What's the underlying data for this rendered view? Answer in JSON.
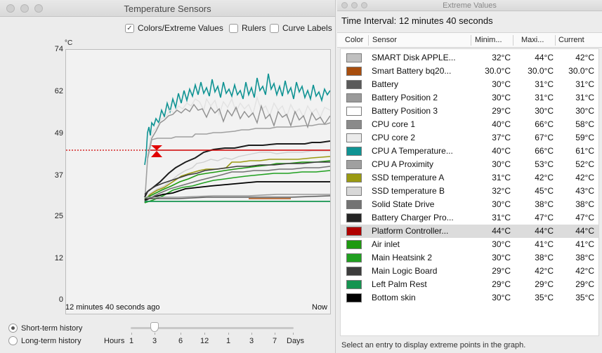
{
  "left_window": {
    "title": "Temperature Sensors",
    "checkboxes": [
      {
        "label": "Colors/Extreme Values",
        "checked": true
      },
      {
        "label": "Rulers",
        "checked": false
      },
      {
        "label": "Curve Labels",
        "checked": false
      }
    ],
    "unit": "°C",
    "y_ticks": [
      "74",
      "62",
      "49",
      "37",
      "25",
      "12",
      "0"
    ],
    "time_start": "12 minutes 40 seconds ago",
    "time_end": "Now",
    "history": {
      "short_label": "Short-term history",
      "long_label": "Long-term history",
      "selected": "short"
    },
    "slider": {
      "label": "Hours",
      "value": "3",
      "ticks": [
        "1",
        "3",
        "6",
        "12",
        "1",
        "3",
        "7",
        "Days"
      ]
    }
  },
  "right_window": {
    "title": "Extreme Values",
    "interval": "Time Interval: 12 minutes 40 seconds",
    "columns": [
      "Color",
      "Sensor",
      "Minim...",
      "Maxi...",
      "Current"
    ],
    "rows": [
      {
        "color": "#c0c0c0",
        "name": "SMART Disk APPLE...",
        "min": "32°C",
        "max": "44°C",
        "cur": "42°C"
      },
      {
        "color": "#a84e0e",
        "name": "Smart Battery bq20...",
        "min": "30.0°C",
        "max": "30.0°C",
        "cur": "30.0°C"
      },
      {
        "color": "#5a5a5a",
        "name": "Battery",
        "min": "30°C",
        "max": "31°C",
        "cur": "31°C"
      },
      {
        "color": "#9a9a9a",
        "name": "Battery Position 2",
        "min": "30°C",
        "max": "31°C",
        "cur": "31°C"
      },
      {
        "color": "#ffffff",
        "name": "Battery Position 3",
        "min": "29°C",
        "max": "30°C",
        "cur": "30°C"
      },
      {
        "color": "#8a8a8a",
        "name": "CPU core 1",
        "min": "40°C",
        "max": "66°C",
        "cur": "58°C"
      },
      {
        "color": "#ebebeb",
        "name": "CPU core 2",
        "min": "37°C",
        "max": "67°C",
        "cur": "59°C"
      },
      {
        "color": "#0f9393",
        "name": "CPU A Temperature...",
        "min": "40°C",
        "max": "66°C",
        "cur": "61°C"
      },
      {
        "color": "#a0a0a0",
        "name": "CPU A Proximity",
        "min": "30°C",
        "max": "53°C",
        "cur": "52°C"
      },
      {
        "color": "#9a9a12",
        "name": "SSD temperature A",
        "min": "31°C",
        "max": "42°C",
        "cur": "42°C"
      },
      {
        "color": "#d8d8d8",
        "name": "SSD temperature B",
        "min": "32°C",
        "max": "45°C",
        "cur": "43°C"
      },
      {
        "color": "#737373",
        "name": "Solid State Drive",
        "min": "30°C",
        "max": "38°C",
        "cur": "38°C"
      },
      {
        "color": "#252525",
        "name": "Battery Charger Pro...",
        "min": "31°C",
        "max": "47°C",
        "cur": "47°C"
      },
      {
        "color": "#b00000",
        "name": "Platform Controller...",
        "min": "44°C",
        "max": "44°C",
        "cur": "44°C",
        "selected": true
      },
      {
        "color": "#1e9a10",
        "name": "Air inlet",
        "min": "30°C",
        "max": "41°C",
        "cur": "41°C"
      },
      {
        "color": "#20a020",
        "name": "Main Heatsink 2",
        "min": "30°C",
        "max": "38°C",
        "cur": "38°C"
      },
      {
        "color": "#3c3c3c",
        "name": "Main Logic Board",
        "min": "29°C",
        "max": "42°C",
        "cur": "42°C"
      },
      {
        "color": "#159450",
        "name": "Left Palm Rest",
        "min": "29°C",
        "max": "29°C",
        "cur": "29°C"
      },
      {
        "color": "#000000",
        "name": "Bottom skin",
        "min": "30°C",
        "max": "35°C",
        "cur": "35°C"
      }
    ],
    "footer": "Select an entry to display extreme points in the graph."
  }
}
